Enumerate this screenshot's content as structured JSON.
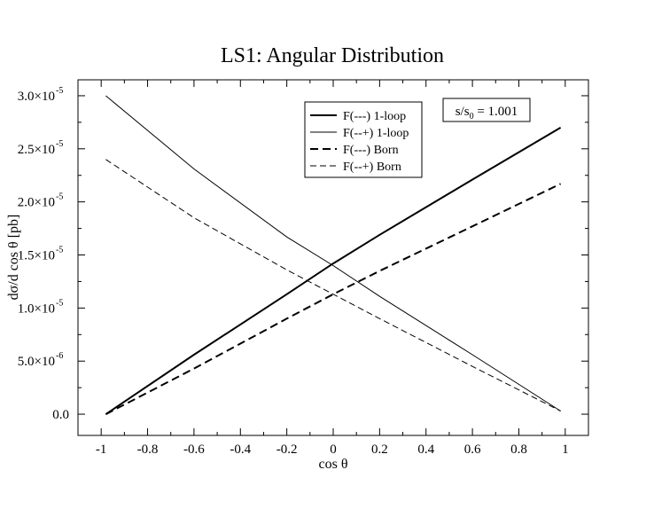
{
  "chart_data": {
    "type": "line",
    "title": "LS1: Angular Distribution",
    "xlabel": "cos θ",
    "ylabel": "dσ/d cos θ [pb]",
    "xlim": [
      -1.1,
      1.1
    ],
    "ylim": [
      -2e-06,
      3.15e-05
    ],
    "x_ticks": [
      {
        "value": -1,
        "label": "-1"
      },
      {
        "value": -0.8,
        "label": "-0.8"
      },
      {
        "value": -0.6,
        "label": "-0.6"
      },
      {
        "value": -0.4,
        "label": "-0.4"
      },
      {
        "value": -0.2,
        "label": "-0.2"
      },
      {
        "value": 0,
        "label": "0"
      },
      {
        "value": 0.2,
        "label": "0.2"
      },
      {
        "value": 0.4,
        "label": "0.4"
      },
      {
        "value": 0.6,
        "label": "0.6"
      },
      {
        "value": 0.8,
        "label": "0.8"
      },
      {
        "value": 1,
        "label": "1"
      }
    ],
    "y_ticks": [
      {
        "value": 0,
        "mantissa": "0.0",
        "exponent": ""
      },
      {
        "value": 5e-06,
        "mantissa": "5.0×10",
        "exponent": "-6"
      },
      {
        "value": 1e-05,
        "mantissa": "1.0×10",
        "exponent": "-5"
      },
      {
        "value": 1.5e-05,
        "mantissa": "1.5×10",
        "exponent": "-5"
      },
      {
        "value": 2e-05,
        "mantissa": "2.0×10",
        "exponent": "-5"
      },
      {
        "value": 2.5e-05,
        "mantissa": "2.5×10",
        "exponent": "-5"
      },
      {
        "value": 3e-05,
        "mantissa": "3.0×10",
        "exponent": "-5"
      }
    ],
    "series": [
      {
        "name": "F(---)  1-loop",
        "style": "solid",
        "weight": "thick",
        "x": [
          -0.98,
          -0.6,
          -0.2,
          0,
          0.2,
          0.6,
          0.98
        ],
        "y": [
          0.0,
          5.6e-06,
          1.13e-05,
          1.42e-05,
          1.69e-05,
          2.21e-05,
          2.7e-05
        ]
      },
      {
        "name": "F(--+) 1-loop",
        "style": "solid",
        "weight": "thin",
        "x": [
          -0.98,
          -0.6,
          -0.2,
          0,
          0.2,
          0.6,
          0.98
        ],
        "y": [
          3e-05,
          2.31e-05,
          1.67e-05,
          1.4e-05,
          1.11e-05,
          5.6e-06,
          3e-07
        ]
      },
      {
        "name": "F(---)  Born",
        "style": "dashed",
        "weight": "thick",
        "x": [
          -0.98,
          -0.6,
          -0.2,
          0,
          0.2,
          0.6,
          0.98
        ],
        "y": [
          0.0,
          4.3e-06,
          9e-06,
          1.13e-05,
          1.35e-05,
          1.77e-05,
          2.17e-05
        ]
      },
      {
        "name": "F(--+) Born",
        "style": "dashed",
        "weight": "thin",
        "x": [
          -0.98,
          -0.6,
          -0.2,
          0,
          0.2,
          0.6,
          0.98
        ],
        "y": [
          2.4e-05,
          1.85e-05,
          1.36e-05,
          1.13e-05,
          9e-06,
          4.5e-06,
          3e-07
        ]
      }
    ],
    "legend_position": "top-center",
    "annotation": {
      "base": "s/s",
      "sub": "0",
      "rest": " = 1.001"
    },
    "grid": false
  }
}
